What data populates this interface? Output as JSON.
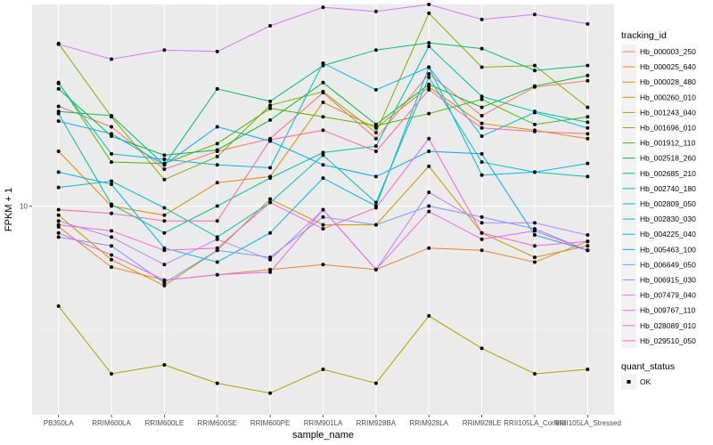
{
  "chart_data": {
    "type": "line",
    "title": "",
    "xlabel": "sample_name",
    "ylabel": "FPKM + 1",
    "y_scale": "log10",
    "ylim": [
      3.1,
      31
    ],
    "y_ticks": [
      10
    ],
    "y_tick_labels": [
      "10"
    ],
    "grid": true,
    "legend_position": "right",
    "categories": [
      "PB350LA",
      "RRIM600LA",
      "RRIM600LE",
      "RRIM600SE",
      "RRIM600PE",
      "RRIM901LA",
      "RRIM928BA",
      "RRIM928LA",
      "RRIM928LE",
      "RRII105LA_Control",
      "RRII105LA_Stressed"
    ],
    "series": [
      {
        "name": "Hb_000003_250",
        "color": "#F8766D",
        "values": [
          17.5,
          15.6,
          12.3,
          13.6,
          14.6,
          18.9,
          14.6,
          21.0,
          16.6,
          19.5,
          20.2
        ]
      },
      {
        "name": "Hb_000025_640",
        "color": "#EB8335",
        "values": [
          8.9,
          7.1,
          6.6,
          6.8,
          7.0,
          7.2,
          7.0,
          7.9,
          7.8,
          7.3,
          8.2
        ]
      },
      {
        "name": "Hb_000028_480",
        "color": "#DA8E00",
        "values": [
          13.6,
          10.0,
          9.5,
          11.4,
          11.8,
          17.9,
          15.5,
          19.5,
          15.9,
          15.3,
          14.6
        ]
      },
      {
        "name": "Hb_000260_010",
        "color": "#C49A00",
        "values": [
          9.5,
          7.4,
          6.4,
          7.8,
          10.4,
          9.0,
          9.0,
          12.5,
          8.6,
          7.5,
          8.0
        ]
      },
      {
        "name": "Hb_001243_040",
        "color": "#AAA300",
        "values": [
          5.7,
          3.9,
          4.1,
          3.7,
          3.5,
          4.0,
          3.7,
          5.4,
          4.5,
          3.9,
          4.0
        ]
      },
      {
        "name": "Hb_001696_010",
        "color": "#87AC00",
        "values": [
          24.9,
          16.5,
          11.6,
          13.2,
          17.6,
          19.0,
          15.1,
          29.5,
          21.8,
          22.0,
          17.4
        ]
      },
      {
        "name": "Hb_001912_110",
        "color": "#53B400",
        "values": [
          20.0,
          12.8,
          12.7,
          14.2,
          17.3,
          16.5,
          15.7,
          16.8,
          18.2,
          15.8,
          16.5
        ]
      },
      {
        "name": "Hb_002518_260",
        "color": "#00BA38",
        "values": [
          19.3,
          14.8,
          13.3,
          13.7,
          16.2,
          20.0,
          15.8,
          19.8,
          17.4,
          19.6,
          20.8
        ]
      },
      {
        "name": "Hb_002685_210",
        "color": "#00BE6F",
        "values": [
          17.0,
          16.6,
          12.6,
          19.3,
          18.0,
          22.0,
          24.0,
          25.0,
          24.2,
          21.4,
          22.0
        ]
      },
      {
        "name": "Hb_002740_180",
        "color": "#00C097",
        "values": [
          16.8,
          10.1,
          8.6,
          10.0,
          11.7,
          13.5,
          14.0,
          24.5,
          18.5,
          17.0,
          16.0
        ]
      },
      {
        "name": "Hb_002809_050",
        "color": "#00C1B8",
        "values": [
          11.1,
          11.5,
          9.9,
          8.4,
          10.2,
          13.3,
          10.2,
          20.6,
          12.8,
          12.1,
          11.8
        ]
      },
      {
        "name": "Hb_002830_030",
        "color": "#00BDD4",
        "values": [
          19.9,
          13.4,
          13.0,
          12.6,
          12.4,
          22.3,
          19.2,
          21.8,
          14.8,
          16.9,
          15.5
        ]
      },
      {
        "name": "Hb_004225_040",
        "color": "#00B5EC",
        "values": [
          12.1,
          11.3,
          7.9,
          7.3,
          8.6,
          11.7,
          10.0,
          21.8,
          11.9,
          12.1,
          12.7
        ]
      },
      {
        "name": "Hb_005463_100",
        "color": "#00A7FF",
        "values": [
          16.1,
          15.0,
          12.6,
          15.6,
          14.4,
          12.6,
          11.8,
          13.6,
          13.4,
          8.5,
          7.8
        ]
      },
      {
        "name": "Hb_006649_050",
        "color": "#7997FF",
        "values": [
          8.4,
          8.0,
          6.5,
          7.8,
          7.5,
          9.4,
          9.0,
          10.0,
          9.4,
          8.8,
          7.8
        ]
      },
      {
        "name": "Hb_006915_030",
        "color": "#B385FF",
        "values": [
          9.2,
          8.4,
          7.2,
          8.3,
          7.4,
          9.8,
          7.0,
          10.8,
          9.1,
          9.1,
          8.5
        ]
      },
      {
        "name": "Hb_007479_040",
        "color": "#D874FD",
        "values": [
          24.8,
          22.8,
          24.0,
          23.8,
          27.5,
          30.5,
          29.8,
          31.0,
          28.5,
          29.3,
          27.8
        ]
      },
      {
        "name": "Hb_009767_110",
        "color": "#EF67EB",
        "values": [
          8.6,
          7.6,
          6.6,
          6.8,
          6.9,
          9.8,
          7.0,
          9.7,
          8.3,
          8.7,
          7.8
        ]
      },
      {
        "name": "Hb_028089_010",
        "color": "#FD61D1",
        "values": [
          9.0,
          8.7,
          7.8,
          7.9,
          10.2,
          8.8,
          9.9,
          14.6,
          8.6,
          8.0,
          8.2
        ]
      },
      {
        "name": "Hb_029510_050",
        "color": "#FF67A4",
        "values": [
          9.8,
          9.6,
          9.2,
          9.2,
          14.5,
          15.3,
          13.6,
          19.2,
          15.5,
          15.2,
          15.0
        ]
      }
    ]
  },
  "legend": {
    "title": "tracking_id",
    "shape_title": "quant_status",
    "shape_entries": [
      "OK"
    ]
  },
  "colors": {
    "panel_background": "#EBEBEB",
    "grid_major": "#FFFFFF",
    "grid_minor": "#F3F3F3",
    "point": "#000000"
  }
}
